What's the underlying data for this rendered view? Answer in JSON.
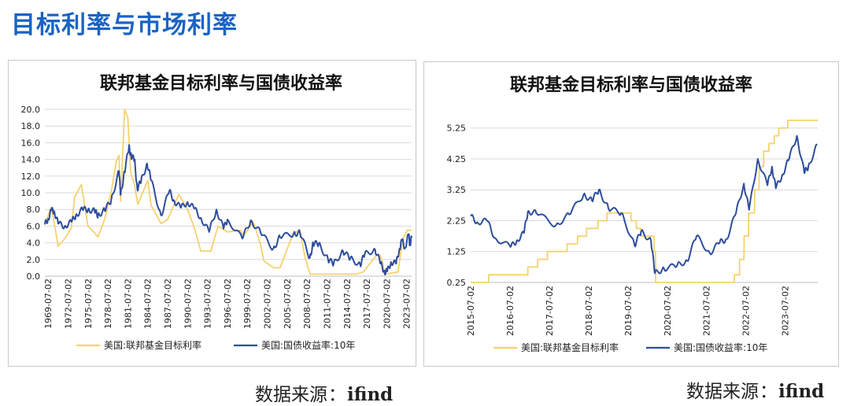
{
  "page": {
    "title": "目标利率与市场利率"
  },
  "sources": [
    {
      "label": "数据来源",
      "sep": "：",
      "name": "ifind"
    },
    {
      "label": "数据来源",
      "sep": "：",
      "name": "ifind"
    }
  ],
  "chart_data": [
    {
      "type": "line",
      "title": "联邦基金目标利率与国债收益率",
      "xlabel": "",
      "ylabel": "",
      "ylim": [
        0,
        20
      ],
      "yticks": [
        "20.0",
        "18.0",
        "16.0",
        "14.0",
        "12.0",
        "10.0",
        "8.0",
        "6.0",
        "4.0",
        "2.0",
        "0.0"
      ],
      "yticks_values": [
        20,
        18,
        16,
        14,
        12,
        10,
        8,
        6,
        4,
        2,
        0
      ],
      "xticks": [
        "1969-07-02",
        "1972-07-02",
        "1975-07-02",
        "1978-07-02",
        "1981-07-02",
        "1984-07-02",
        "1987-07-02",
        "1990-07-02",
        "1993-07-02",
        "1996-07-02",
        "1999-07-02",
        "2002-07-02",
        "2005-07-02",
        "2008-07-02",
        "2011-07-02",
        "2014-07-02",
        "2017-07-02",
        "2020-07-02",
        "2023-07-02"
      ],
      "xlim": [
        "1969-01-02",
        "2024-03-31"
      ],
      "grid": "horizontal",
      "legend_position": "bottom",
      "series": [
        {
          "name": "美国:联邦基金目标利率",
          "color": "#f5d26e",
          "points": [
            [
              "1969-01-02",
              6.3
            ],
            [
              "1970-01-02",
              8.3
            ],
            [
              "1971-01-02",
              3.6
            ],
            [
              "1972-01-02",
              4.5
            ],
            [
              "1973-01-02",
              5.8
            ],
            [
              "1973-07-02",
              9.5
            ],
            [
              "1974-07-02",
              11.0
            ],
            [
              "1975-07-02",
              6.0
            ],
            [
              "1976-07-02",
              5.2
            ],
            [
              "1977-01-02",
              4.7
            ],
            [
              "1978-01-02",
              6.8
            ],
            [
              "1979-01-02",
              10.1
            ],
            [
              "1979-10-02",
              13.8
            ],
            [
              "1980-03-02",
              14.5
            ],
            [
              "1980-06-02",
              9.0
            ],
            [
              "1980-12-02",
              18.2
            ],
            [
              "1981-01-02",
              20.0
            ],
            [
              "1981-07-02",
              19.0
            ],
            [
              "1981-12-02",
              12.4
            ],
            [
              "1982-07-02",
              11.0
            ],
            [
              "1983-01-02",
              8.6
            ],
            [
              "1984-07-02",
              11.5
            ],
            [
              "1985-01-02",
              8.5
            ],
            [
              "1986-07-02",
              6.3
            ],
            [
              "1987-07-02",
              6.8
            ],
            [
              "1989-03-02",
              9.8
            ],
            [
              "1990-07-02",
              8.0
            ],
            [
              "1991-07-02",
              5.8
            ],
            [
              "1992-07-02",
              3.0
            ],
            [
              "1994-01-02",
              3.0
            ],
            [
              "1995-02-02",
              6.0
            ],
            [
              "1996-07-02",
              5.3
            ],
            [
              "1998-07-02",
              5.5
            ],
            [
              "1998-12-02",
              4.8
            ],
            [
              "2000-06-02",
              6.5
            ],
            [
              "2001-07-02",
              3.8
            ],
            [
              "2002-01-02",
              1.8
            ],
            [
              "2003-07-02",
              1.0
            ],
            [
              "2004-06-02",
              1.0
            ],
            [
              "2006-07-02",
              5.3
            ],
            [
              "2007-07-02",
              5.3
            ],
            [
              "2008-03-02",
              2.3
            ],
            [
              "2008-12-16",
              0.25
            ],
            [
              "2015-12-16",
              0.25
            ],
            [
              "2016-12-16",
              0.5
            ],
            [
              "2017-12-16",
              1.5
            ],
            [
              "2018-12-20",
              2.5
            ],
            [
              "2019-07-02",
              2.5
            ],
            [
              "2019-10-31",
              1.75
            ],
            [
              "2020-03-16",
              0.25
            ],
            [
              "2022-03-16",
              0.5
            ],
            [
              "2022-07-27",
              2.5
            ],
            [
              "2022-12-14",
              4.5
            ],
            [
              "2023-07-26",
              5.5
            ],
            [
              "2024-03-31",
              5.5
            ]
          ]
        },
        {
          "name": "美国:国债收益率:10年",
          "color": "#2e4d9c",
          "points": [
            [
              "1969-01-02",
              6.2
            ],
            [
              "1969-07-02",
              6.9
            ],
            [
              "1970-01-02",
              7.9
            ],
            [
              "1970-06-02",
              7.8
            ],
            [
              "1971-01-02",
              6.3
            ],
            [
              "1972-01-02",
              6.0
            ],
            [
              "1973-01-02",
              6.5
            ],
            [
              "1973-09-02",
              7.3
            ],
            [
              "1974-09-02",
              8.0
            ],
            [
              "1975-07-02",
              8.0
            ],
            [
              "1976-07-02",
              7.8
            ],
            [
              "1977-01-02",
              7.3
            ],
            [
              "1978-01-02",
              7.9
            ],
            [
              "1979-01-02",
              9.1
            ],
            [
              "1980-03-02",
              12.6
            ],
            [
              "1980-06-02",
              9.8
            ],
            [
              "1981-01-02",
              12.5
            ],
            [
              "1981-09-02",
              15.5
            ],
            [
              "1982-01-02",
              14.4
            ],
            [
              "1982-07-02",
              14.0
            ],
            [
              "1982-12-02",
              10.5
            ],
            [
              "1983-07-02",
              11.4
            ],
            [
              "1984-06-02",
              13.5
            ],
            [
              "1985-01-02",
              11.5
            ],
            [
              "1986-07-02",
              7.3
            ],
            [
              "1987-10-02",
              10.2
            ],
            [
              "1988-07-02",
              9.0
            ],
            [
              "1989-07-02",
              8.2
            ],
            [
              "1990-07-02",
              8.9
            ],
            [
              "1991-07-02",
              8.1
            ],
            [
              "1992-07-02",
              7.0
            ],
            [
              "1993-10-02",
              5.3
            ],
            [
              "1994-11-02",
              8.0
            ],
            [
              "1995-12-02",
              5.7
            ],
            [
              "1996-07-02",
              6.8
            ],
            [
              "1998-10-02",
              4.5
            ],
            [
              "2000-01-02",
              6.7
            ],
            [
              "2001-07-02",
              5.2
            ],
            [
              "2003-06-02",
              3.3
            ],
            [
              "2004-06-02",
              4.7
            ],
            [
              "2006-07-02",
              5.1
            ],
            [
              "2007-06-02",
              5.2
            ],
            [
              "2008-12-02",
              2.2
            ],
            [
              "2009-06-02",
              3.9
            ],
            [
              "2010-04-02",
              3.9
            ],
            [
              "2011-09-02",
              2.0
            ],
            [
              "2012-07-02",
              1.5
            ],
            [
              "2013-12-02",
              3.0
            ],
            [
              "2015-01-02",
              2.1
            ],
            [
              "2016-07-02",
              1.4
            ],
            [
              "2017-03-02",
              2.6
            ],
            [
              "2018-10-02",
              3.2
            ],
            [
              "2019-08-02",
              1.5
            ],
            [
              "2020-03-09",
              0.5
            ],
            [
              "2020-08-02",
              0.6
            ],
            [
              "2021-03-02",
              1.7
            ],
            [
              "2021-12-02",
              1.5
            ],
            [
              "2022-06-02",
              3.3
            ],
            [
              "2022-10-21",
              4.3
            ],
            [
              "2023-04-02",
              3.4
            ],
            [
              "2023-10-19",
              5.0
            ],
            [
              "2023-12-27",
              3.8
            ],
            [
              "2024-03-31",
              4.6
            ]
          ]
        }
      ]
    },
    {
      "type": "line",
      "title": "联邦基金目标利率与国债收益率",
      "xlabel": "",
      "ylabel": "",
      "ylim": [
        0.25,
        5.6
      ],
      "yticks": [
        "5.25",
        "4.25",
        "3.25",
        "2.25",
        "1.25",
        "0.25"
      ],
      "yticks_values": [
        5.25,
        4.25,
        3.25,
        2.25,
        1.25,
        0.25
      ],
      "xticks": [
        "2015-07-02",
        "2016-07-02",
        "2017-07-02",
        "2018-07-02",
        "2019-07-02",
        "2020-07-02",
        "2021-07-02",
        "2022-07-02",
        "2023-07-02"
      ],
      "xlim": [
        "2015-07-02",
        "2024-04-30"
      ],
      "grid": "horizontal",
      "legend_position": "bottom",
      "series": [
        {
          "name": "美国:联邦基金目标利率",
          "color": "#f5d26e",
          "points": [
            [
              "2015-07-02",
              0.25
            ],
            [
              "2015-12-16",
              0.25
            ],
            [
              "2015-12-17",
              0.5
            ],
            [
              "2016-12-14",
              0.5
            ],
            [
              "2016-12-15",
              0.75
            ],
            [
              "2017-03-15",
              0.75
            ],
            [
              "2017-03-16",
              1.0
            ],
            [
              "2017-06-14",
              1.0
            ],
            [
              "2017-06-15",
              1.25
            ],
            [
              "2017-12-13",
              1.25
            ],
            [
              "2017-12-14",
              1.5
            ],
            [
              "2018-03-21",
              1.5
            ],
            [
              "2018-03-22",
              1.75
            ],
            [
              "2018-06-13",
              1.75
            ],
            [
              "2018-06-14",
              2.0
            ],
            [
              "2018-09-26",
              2.0
            ],
            [
              "2018-09-27",
              2.25
            ],
            [
              "2018-12-19",
              2.25
            ],
            [
              "2018-12-20",
              2.5
            ],
            [
              "2019-07-31",
              2.5
            ],
            [
              "2019-08-01",
              2.25
            ],
            [
              "2019-09-18",
              2.25
            ],
            [
              "2019-09-19",
              2.0
            ],
            [
              "2019-10-30",
              2.0
            ],
            [
              "2019-10-31",
              1.75
            ],
            [
              "2020-03-02",
              1.75
            ],
            [
              "2020-03-03",
              1.25
            ],
            [
              "2020-03-15",
              1.25
            ],
            [
              "2020-03-16",
              0.25
            ],
            [
              "2022-03-16",
              0.25
            ],
            [
              "2022-03-17",
              0.5
            ],
            [
              "2022-05-04",
              0.5
            ],
            [
              "2022-05-05",
              1.0
            ],
            [
              "2022-06-15",
              1.0
            ],
            [
              "2022-06-16",
              1.75
            ],
            [
              "2022-07-27",
              1.75
            ],
            [
              "2022-07-28",
              2.5
            ],
            [
              "2022-09-21",
              2.5
            ],
            [
              "2022-09-22",
              3.25
            ],
            [
              "2022-11-02",
              3.25
            ],
            [
              "2022-11-03",
              4.0
            ],
            [
              "2022-12-14",
              4.0
            ],
            [
              "2022-12-15",
              4.5
            ],
            [
              "2023-02-01",
              4.5
            ],
            [
              "2023-02-02",
              4.75
            ],
            [
              "2023-03-22",
              4.75
            ],
            [
              "2023-03-23",
              5.0
            ],
            [
              "2023-05-03",
              5.0
            ],
            [
              "2023-05-04",
              5.25
            ],
            [
              "2023-07-26",
              5.25
            ],
            [
              "2023-07-27",
              5.5
            ],
            [
              "2024-04-30",
              5.5
            ]
          ]
        },
        {
          "name": "美国:国债收益率:10年",
          "color": "#2e4d9c",
          "points": [
            [
              "2015-07-02",
              2.4
            ],
            [
              "2015-09-02",
              2.2
            ],
            [
              "2015-12-02",
              2.25
            ],
            [
              "2016-02-11",
              1.7
            ],
            [
              "2016-07-06",
              1.4
            ],
            [
              "2016-09-02",
              1.6
            ],
            [
              "2016-11-08",
              1.85
            ],
            [
              "2016-12-15",
              2.55
            ],
            [
              "2017-03-02",
              2.5
            ],
            [
              "2017-09-02",
              2.1
            ],
            [
              "2018-01-02",
              2.45
            ],
            [
              "2018-05-17",
              3.1
            ],
            [
              "2018-08-02",
              2.9
            ],
            [
              "2018-10-05",
              3.25
            ],
            [
              "2019-01-02",
              2.65
            ],
            [
              "2019-05-02",
              2.5
            ],
            [
              "2019-09-03",
              1.45
            ],
            [
              "2019-11-02",
              1.9
            ],
            [
              "2020-02-02",
              1.6
            ],
            [
              "2020-03-09",
              0.55
            ],
            [
              "2020-06-02",
              0.7
            ],
            [
              "2020-10-02",
              0.8
            ],
            [
              "2021-01-02",
              0.95
            ],
            [
              "2021-03-31",
              1.75
            ],
            [
              "2021-08-02",
              1.2
            ],
            [
              "2021-11-02",
              1.55
            ],
            [
              "2022-01-03",
              1.65
            ],
            [
              "2022-04-02",
              2.5
            ],
            [
              "2022-06-14",
              3.45
            ],
            [
              "2022-08-01",
              2.6
            ],
            [
              "2022-10-21",
              4.25
            ],
            [
              "2023-01-19",
              3.4
            ],
            [
              "2023-03-02",
              4.0
            ],
            [
              "2023-04-06",
              3.3
            ],
            [
              "2023-06-02",
              3.7
            ],
            [
              "2023-08-02",
              4.2
            ],
            [
              "2023-10-19",
              5.0
            ],
            [
              "2023-12-27",
              3.8
            ],
            [
              "2024-02-02",
              4.0
            ],
            [
              "2024-04-25",
              4.7
            ]
          ]
        }
      ]
    }
  ]
}
